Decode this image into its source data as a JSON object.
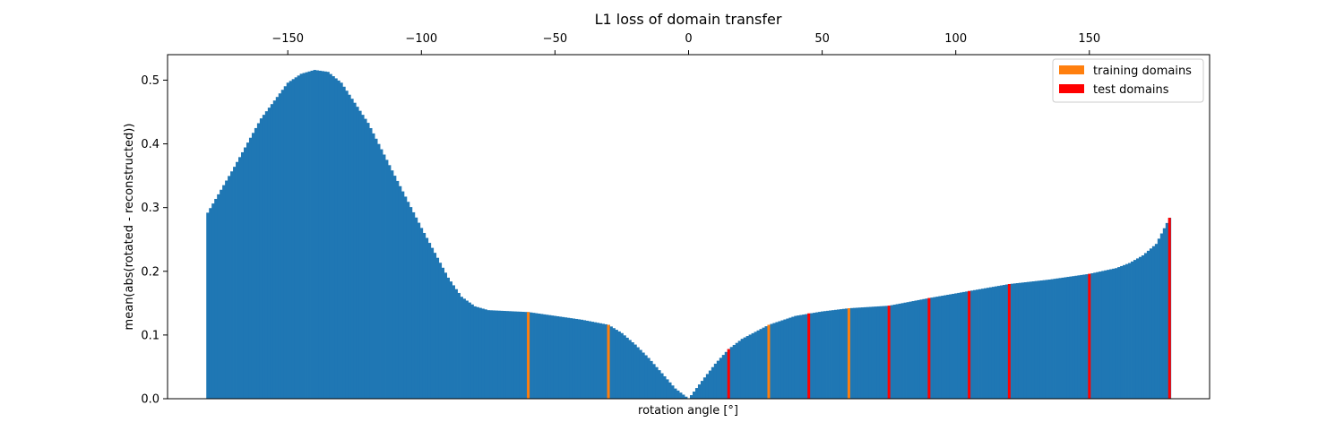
{
  "chart_data": {
    "type": "bar",
    "title": "L1 loss of domain transfer",
    "xlabel": "rotation angle [°]",
    "ylabel": "mean(abs(rotated - reconstructed))",
    "xlim": [
      -195,
      195
    ],
    "ylim": [
      0,
      0.54
    ],
    "x_axis_position": "top",
    "x_ticks": [
      "−150",
      "−100",
      "−50",
      "0",
      "50",
      "100",
      "150"
    ],
    "x_tick_values": [
      -150,
      -100,
      -50,
      0,
      50,
      100,
      150
    ],
    "y_ticks": [
      "0.0",
      "0.1",
      "0.2",
      "0.3",
      "0.4",
      "0.5"
    ],
    "y_tick_values": [
      0,
      0.1,
      0.2,
      0.3,
      0.4,
      0.5
    ],
    "grid": false,
    "legend_position": "upper right",
    "angle_step": 1,
    "curve_knots": [
      {
        "x": -180,
        "y": 0.292
      },
      {
        "x": -170,
        "y": 0.364
      },
      {
        "x": -160,
        "y": 0.44
      },
      {
        "x": -150,
        "y": 0.496
      },
      {
        "x": -145,
        "y": 0.51
      },
      {
        "x": -140,
        "y": 0.516
      },
      {
        "x": -135,
        "y": 0.513
      },
      {
        "x": -130,
        "y": 0.496
      },
      {
        "x": -120,
        "y": 0.433
      },
      {
        "x": -110,
        "y": 0.35
      },
      {
        "x": -100,
        "y": 0.268
      },
      {
        "x": -90,
        "y": 0.19
      },
      {
        "x": -85,
        "y": 0.16
      },
      {
        "x": -80,
        "y": 0.145
      },
      {
        "x": -75,
        "y": 0.139
      },
      {
        "x": -60,
        "y": 0.136
      },
      {
        "x": -50,
        "y": 0.13
      },
      {
        "x": -40,
        "y": 0.124
      },
      {
        "x": -30,
        "y": 0.116
      },
      {
        "x": -25,
        "y": 0.103
      },
      {
        "x": -20,
        "y": 0.085
      },
      {
        "x": -15,
        "y": 0.064
      },
      {
        "x": -10,
        "y": 0.04
      },
      {
        "x": -5,
        "y": 0.016
      },
      {
        "x": 0,
        "y": 0.0
      },
      {
        "x": 5,
        "y": 0.028
      },
      {
        "x": 10,
        "y": 0.055
      },
      {
        "x": 15,
        "y": 0.078
      },
      {
        "x": 20,
        "y": 0.094
      },
      {
        "x": 30,
        "y": 0.116
      },
      {
        "x": 40,
        "y": 0.13
      },
      {
        "x": 50,
        "y": 0.137
      },
      {
        "x": 60,
        "y": 0.142
      },
      {
        "x": 75,
        "y": 0.146
      },
      {
        "x": 90,
        "y": 0.158
      },
      {
        "x": 105,
        "y": 0.169
      },
      {
        "x": 120,
        "y": 0.18
      },
      {
        "x": 135,
        "y": 0.187
      },
      {
        "x": 150,
        "y": 0.196
      },
      {
        "x": 160,
        "y": 0.205
      },
      {
        "x": 165,
        "y": 0.213
      },
      {
        "x": 170,
        "y": 0.225
      },
      {
        "x": 175,
        "y": 0.243
      },
      {
        "x": 180,
        "y": 0.284
      }
    ],
    "series": [
      {
        "name": "training domains",
        "color": "#ff7f0e",
        "x": [
          -60,
          -30,
          30,
          60
        ],
        "values": [
          0.136,
          0.116,
          0.116,
          0.142
        ]
      },
      {
        "name": "test domains",
        "color": "#ff0000",
        "x": [
          15,
          45,
          75,
          90,
          105,
          120,
          150,
          180
        ],
        "values": [
          0.078,
          0.134,
          0.146,
          0.158,
          0.169,
          0.18,
          0.196,
          0.284
        ]
      }
    ],
    "base_color": "#1f77b4"
  }
}
